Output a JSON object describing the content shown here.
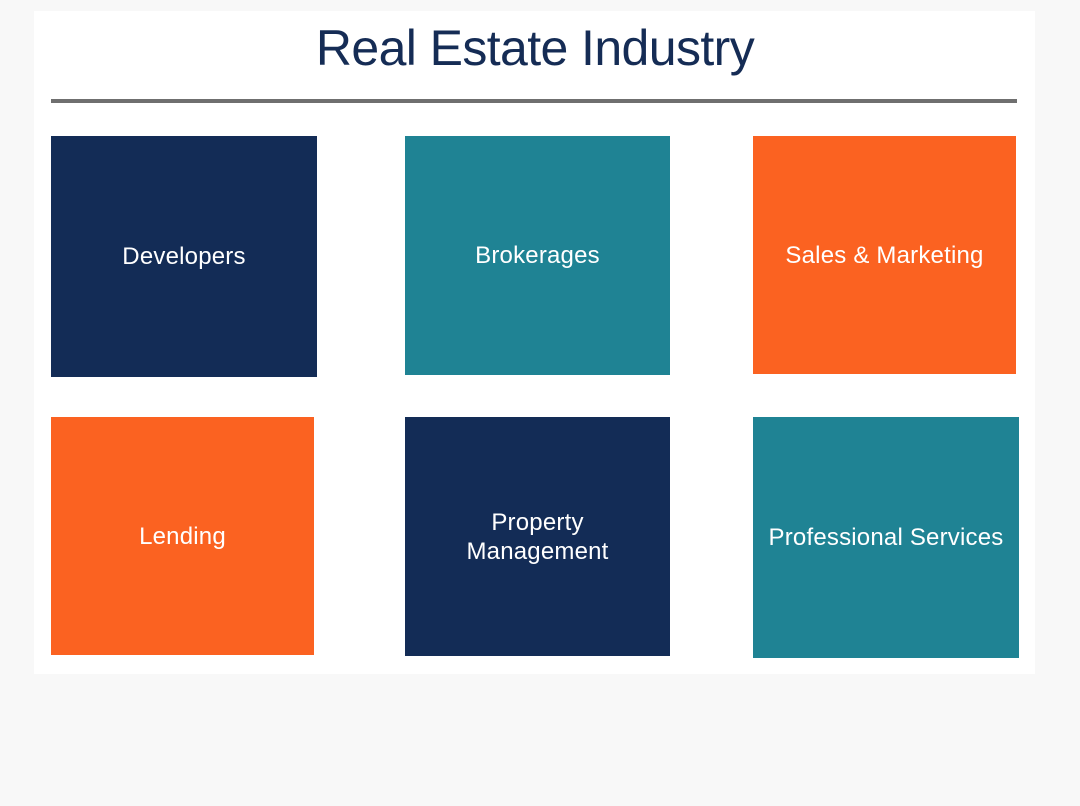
{
  "title": "Real Estate Industry",
  "colors": {
    "navy": "#132c56",
    "teal": "#1f8394",
    "orange": "#fb6221"
  },
  "tiles": [
    {
      "label": "Developers",
      "color": "navy"
    },
    {
      "label": "Brokerages",
      "color": "teal"
    },
    {
      "label": "Sales & Marketing",
      "color": "orange"
    },
    {
      "label": "Lending",
      "color": "orange"
    },
    {
      "label": "Property\nManagement",
      "color": "navy"
    },
    {
      "label": "Professional Services",
      "color": "teal"
    }
  ]
}
